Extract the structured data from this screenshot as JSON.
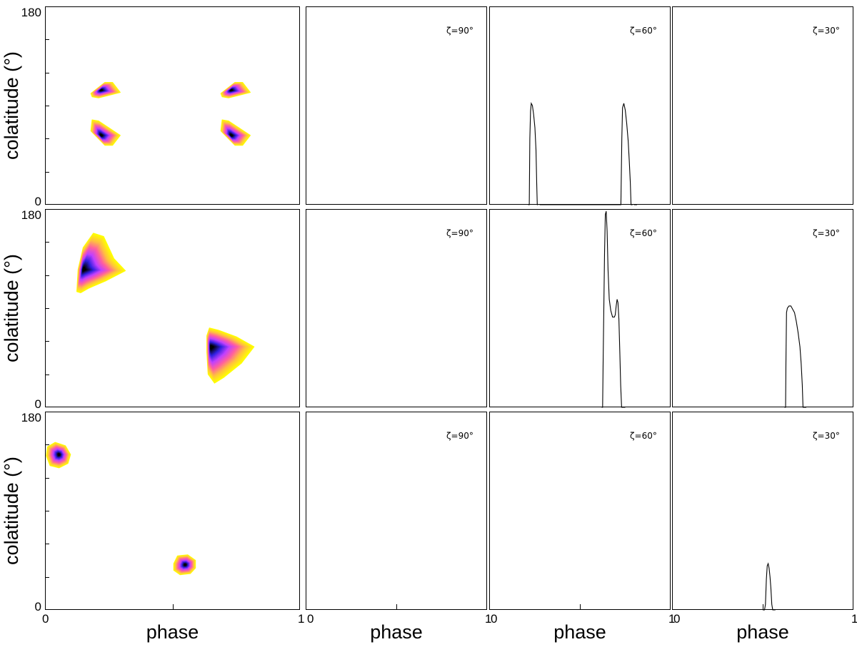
{
  "axis_labels": {
    "ylabel": "colatitude (°)",
    "xlabel": "phase",
    "ytick_top": "180",
    "ytick_bottom": "0",
    "xtick_left": "0",
    "xtick_right": "1"
  },
  "colors": {
    "map_ramp": [
      "#ffff00",
      "#ffc040",
      "#ff5fa0",
      "#c040ff",
      "#3020e0",
      "#000000"
    ],
    "profile_line": "#000000",
    "frame": "#000000",
    "background": "#ffffff"
  },
  "chart_data": [
    {
      "type": "heatmap",
      "row": 1,
      "xlim": [
        0,
        1
      ],
      "ylim": [
        0,
        180
      ],
      "blobs": [
        {
          "points": [
            [
              0.18,
              101
            ],
            [
              0.235,
              111
            ],
            [
              0.265,
              111
            ],
            [
              0.295,
              102
            ],
            [
              0.21,
              97
            ],
            [
              0.185,
              98
            ]
          ],
          "core": [
            0.22,
            104
          ]
        },
        {
          "points": [
            [
              0.185,
              77
            ],
            [
              0.21,
              76
            ],
            [
              0.295,
              63
            ],
            [
              0.265,
              54
            ],
            [
              0.235,
              54
            ],
            [
              0.18,
              67
            ]
          ],
          "core": [
            0.22,
            63
          ]
        },
        {
          "points": [
            [
              0.69,
              101
            ],
            [
              0.745,
              111
            ],
            [
              0.775,
              111
            ],
            [
              0.805,
              102
            ],
            [
              0.72,
              97
            ],
            [
              0.695,
              98
            ]
          ],
          "core": [
            0.73,
            104
          ]
        },
        {
          "points": [
            [
              0.695,
              77
            ],
            [
              0.72,
              76
            ],
            [
              0.805,
              63
            ],
            [
              0.775,
              54
            ],
            [
              0.745,
              54
            ],
            [
              0.69,
              67
            ]
          ],
          "core": [
            0.73,
            63
          ]
        }
      ]
    },
    {
      "type": "line",
      "row": 1,
      "col": 2,
      "label": "ζ=90°",
      "xlim": [
        0,
        1
      ],
      "ylim": [
        0,
        180
      ],
      "x": [],
      "y": []
    },
    {
      "type": "line",
      "row": 1,
      "col": 3,
      "label": "ζ=60°",
      "xlim": [
        0,
        1
      ],
      "ylim": [
        0,
        180
      ],
      "x": [
        0.215,
        0.221,
        0.224,
        0.228,
        0.232,
        0.238,
        0.245,
        0.252,
        0.258,
        0.262,
        0.265,
        0.269,
        0.269,
        0.278,
        0.285,
        0.295,
        0.302,
        0.72,
        0.726,
        0.731,
        0.735,
        0.742,
        0.75,
        0.758,
        0.766,
        0.772,
        0.778,
        0.782,
        0.785,
        0.79,
        0.79,
        0.798,
        0.805,
        0.815
      ],
      "y": [
        0,
        0,
        60,
        85,
        92,
        90,
        82,
        70,
        50,
        20,
        0,
        0,
        null,
        0,
        0,
        0,
        0,
        0,
        0,
        60,
        88,
        92,
        86,
        74,
        58,
        40,
        20,
        0,
        0,
        0,
        null,
        0,
        0,
        0
      ]
    },
    {
      "type": "line",
      "row": 1,
      "col": 4,
      "label": "ζ=30°",
      "xlim": [
        0,
        1
      ],
      "ylim": [
        0,
        180
      ],
      "x": [],
      "y": []
    },
    {
      "type": "heatmap",
      "row": 2,
      "xlim": [
        0,
        1
      ],
      "ylim": [
        0,
        180
      ],
      "blobs": [
        {
          "points": [
            [
              0.125,
              105
            ],
            [
              0.13,
              125
            ],
            [
              0.15,
              145
            ],
            [
              0.19,
              158
            ],
            [
              0.23,
              155
            ],
            [
              0.27,
              135
            ],
            [
              0.315,
              124
            ],
            [
              0.24,
              115
            ],
            [
              0.17,
              108
            ],
            [
              0.14,
              104
            ]
          ],
          "core": [
            0.15,
            125
          ]
        },
        {
          "points": [
            [
              0.635,
              65
            ],
            [
              0.645,
              72
            ],
            [
              0.68,
              70
            ],
            [
              0.75,
              64
            ],
            [
              0.82,
              55
            ],
            [
              0.77,
              40
            ],
            [
              0.7,
              27
            ],
            [
              0.665,
              22
            ],
            [
              0.64,
              30
            ],
            [
              0.635,
              50
            ]
          ],
          "core": [
            0.65,
            55
          ]
        }
      ]
    },
    {
      "type": "line",
      "row": 2,
      "col": 2,
      "label": "ζ=90°",
      "xlim": [
        0,
        1
      ],
      "ylim": [
        0,
        180
      ],
      "x": [],
      "y": []
    },
    {
      "type": "line",
      "row": 2,
      "col": 3,
      "label": "ζ=60°",
      "xlim": [
        0,
        1
      ],
      "ylim": [
        0,
        180
      ],
      "x": [
        0.62,
        0.625,
        0.628,
        0.632,
        0.636,
        0.64,
        0.645,
        0.65,
        0.655,
        0.662,
        0.67,
        0.68,
        0.69,
        0.695,
        0.7,
        0.705,
        0.71,
        0.715,
        0.72,
        0.725,
        0.73,
        0.735,
        0.74,
        0.75
      ],
      "y": [
        0,
        0,
        40,
        90,
        140,
        175,
        178,
        160,
        125,
        98,
        88,
        82,
        82,
        84,
        92,
        98,
        95,
        80,
        50,
        20,
        0,
        0,
        0,
        0
      ]
    },
    {
      "type": "line",
      "row": 2,
      "col": 4,
      "label": "ζ=30°",
      "xlim": [
        0,
        1
      ],
      "ylim": [
        0,
        180
      ],
      "x": [
        0.62,
        0.626,
        0.628,
        0.631,
        0.636,
        0.645,
        0.655,
        0.665,
        0.675,
        0.685,
        0.695,
        0.705,
        0.712,
        0.718,
        0.722,
        0.73,
        0.74
      ],
      "y": [
        0,
        0,
        40,
        86,
        90,
        92,
        92,
        89,
        86,
        78,
        68,
        55,
        40,
        20,
        0,
        0,
        0
      ]
    },
    {
      "type": "heatmap",
      "row": 3,
      "xlim": [
        0,
        1
      ],
      "ylim": [
        0,
        180
      ],
      "blobs": [
        {
          "points": [
            [
              0.005,
              140
            ],
            [
              0.01,
              148
            ],
            [
              0.04,
              152
            ],
            [
              0.08,
              149
            ],
            [
              0.1,
              141
            ],
            [
              0.09,
              133
            ],
            [
              0.055,
              129
            ],
            [
              0.02,
              131
            ]
          ],
          "core": [
            0.055,
            141
          ]
        },
        {
          "points": [
            [
              0.505,
              42
            ],
            [
              0.52,
              49
            ],
            [
              0.56,
              50
            ],
            [
              0.59,
              45
            ],
            [
              0.59,
              38
            ],
            [
              0.57,
              33
            ],
            [
              0.53,
              32
            ],
            [
              0.505,
              36
            ]
          ],
          "core": [
            0.55,
            41
          ]
        }
      ]
    },
    {
      "type": "line",
      "row": 3,
      "col": 2,
      "label": "ζ=90°",
      "xlim": [
        0,
        1
      ],
      "ylim": [
        0,
        180
      ],
      "x": [],
      "y": []
    },
    {
      "type": "line",
      "row": 3,
      "col": 3,
      "label": "ζ=60°",
      "xlim": [
        0,
        1
      ],
      "ylim": [
        0,
        180
      ],
      "x": [],
      "y": []
    },
    {
      "type": "line",
      "row": 3,
      "col": 4,
      "label": "ζ=30°",
      "xlim": [
        0,
        1
      ],
      "ylim": [
        0,
        180
      ],
      "x": [
        0.5,
        0.51,
        0.515,
        0.52,
        0.525,
        0.53,
        0.535,
        0.54,
        0.545,
        0.55,
        0.555,
        0.56,
        0.57
      ],
      "y": [
        0,
        0,
        5,
        28,
        40,
        42,
        38,
        30,
        20,
        5,
        0,
        0,
        0
      ]
    }
  ]
}
